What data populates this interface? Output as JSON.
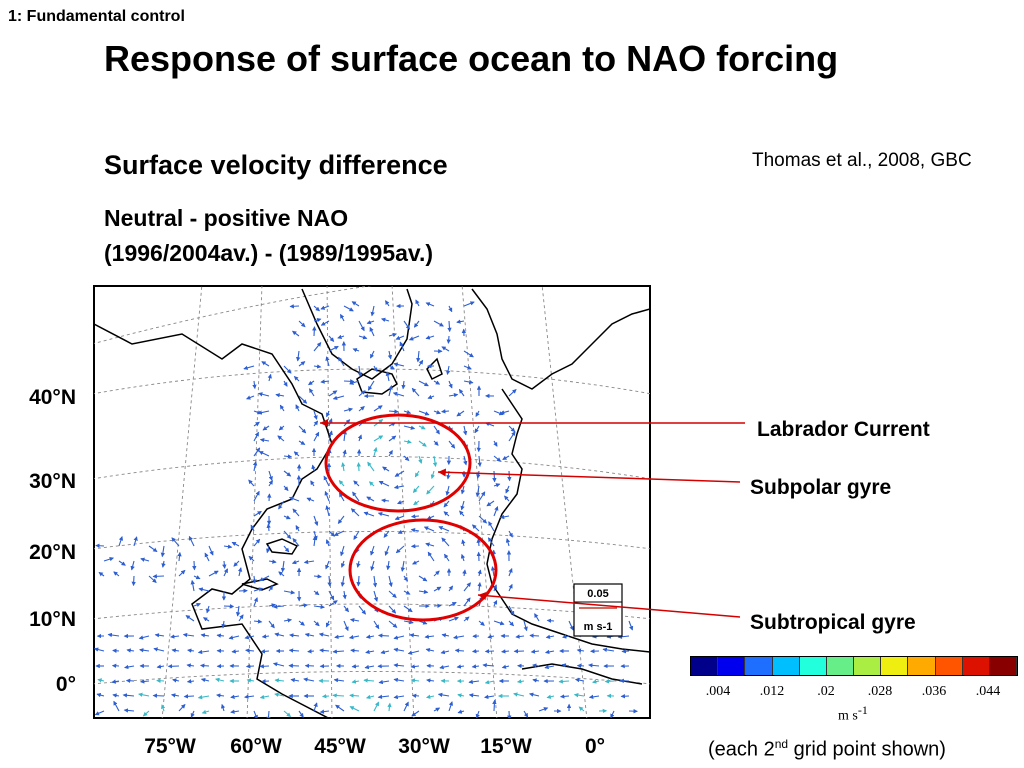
{
  "slide_label": "1: Fundamental control",
  "title": "Response of surface ocean to NAO forcing",
  "subtitle": "Surface velocity difference",
  "panel_line1": "Neutral - positive NAO",
  "panel_line2": "(1996/2004av.) - (1989/1995av.)",
  "citation": "Thomas et al., 2008, GBC",
  "lat_labels": [
    "40°N",
    "30°N",
    "20°N",
    "10°N",
    "0°"
  ],
  "lon_labels": [
    "75°W",
    "60°W",
    "45°W",
    "30°W",
    "15°W",
    "0°"
  ],
  "annotations": {
    "labrador": "Labrador Current",
    "subpolar": "Subpolar gyre",
    "subtropical": "Subtropical gyre"
  },
  "reference_vector": {
    "value": "0.05",
    "units": "m s-1"
  },
  "colorbar": {
    "colors": [
      "#00008b",
      "#0000ee",
      "#1e6fff",
      "#00bfff",
      "#22ffdd",
      "#66ee88",
      "#aaee44",
      "#eeee11",
      "#ffaa00",
      "#ff5500",
      "#dd1100",
      "#880000"
    ],
    "ticks": [
      ".004",
      ".012",
      ".02",
      ".028",
      ".036",
      ".044"
    ],
    "units": "m s"
  },
  "footnote": {
    "pre": "(each 2",
    "sup": "nd",
    "post": " grid point shown)"
  },
  "colors": {
    "annotation_line": "#d40000",
    "graticule": "#888888",
    "arrow_main": "#2d5fd3"
  }
}
